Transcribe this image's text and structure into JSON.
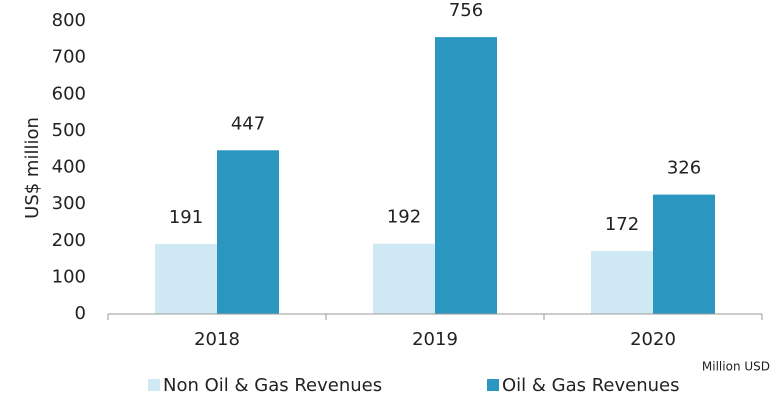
{
  "chart_data": {
    "type": "bar",
    "y_axis_label": "US$ million",
    "note": "Million USD",
    "categories": [
      "2018",
      "2019",
      "2020"
    ],
    "series": [
      {
        "name": "Non Oil & Gas Revenues",
        "color": "#cfe9f4",
        "values": [
          191,
          192,
          172
        ]
      },
      {
        "name": "Oil & Gas Revenues",
        "color": "#2b97c1",
        "values": [
          447,
          756,
          326
        ]
      }
    ],
    "ylim": [
      0,
      800
    ],
    "yticks": [
      0,
      100,
      200,
      300,
      400,
      500,
      600,
      700,
      800
    ],
    "grid": false,
    "legend": "bottom"
  }
}
